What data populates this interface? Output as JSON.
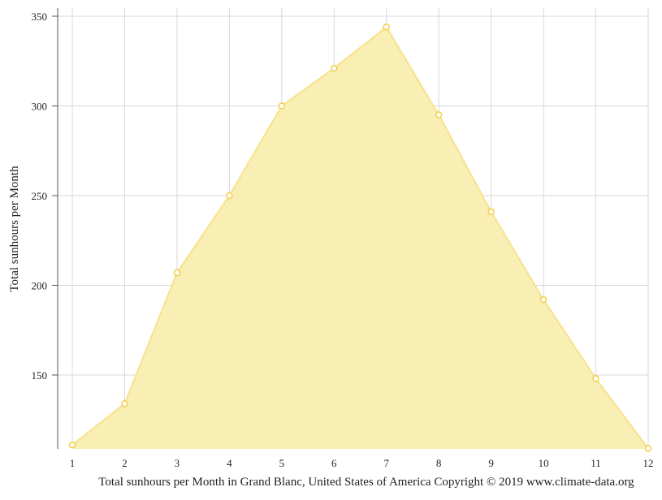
{
  "chart_data": {
    "type": "area",
    "title": "",
    "xlabel": "Total sunhours per Month in Grand Blanc, United States of America Copyright © 2019 www.climate-data.org",
    "ylabel": "Total sunhours per Month",
    "x": [
      1,
      2,
      3,
      4,
      5,
      6,
      7,
      8,
      9,
      10,
      11,
      12
    ],
    "x_tick_labels": [
      "1",
      "2",
      "3",
      "4",
      "5",
      "6",
      "7",
      "8",
      "9",
      "10",
      "11",
      "12"
    ],
    "values": [
      111,
      134,
      207,
      250,
      300,
      321,
      344,
      295,
      241,
      192,
      148,
      109
    ],
    "y_ticks": [
      150,
      200,
      250,
      300,
      350
    ],
    "y_tick_labels": [
      "150",
      "200",
      "250",
      "300",
      "350"
    ],
    "ylim": [
      109,
      355
    ],
    "grid": true,
    "colors": {
      "fill": "#f9edb0",
      "line": "#f7e28a",
      "marker": "#f2cf45"
    }
  }
}
